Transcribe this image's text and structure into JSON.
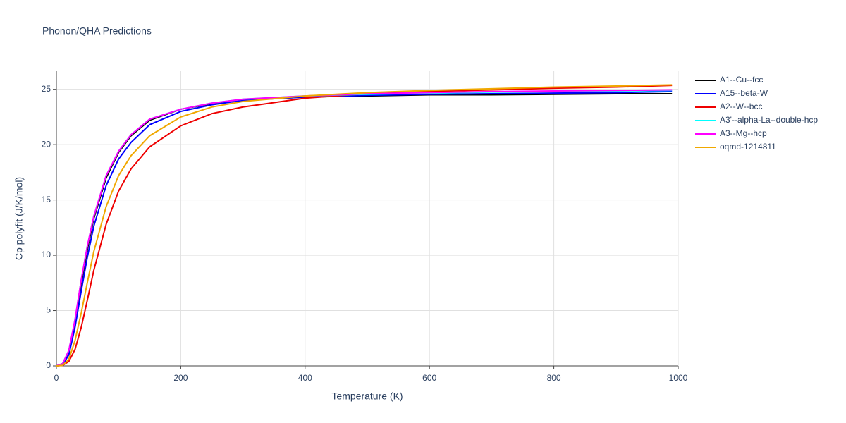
{
  "chart_data": {
    "type": "line",
    "title": "Phonon/QHA Predictions",
    "x_label": "Temperature (K)",
    "y_label": "Cp polyfit (J/K/mol)",
    "x": [
      0,
      10,
      20,
      30,
      40,
      50,
      60,
      80,
      100,
      120,
      150,
      200,
      250,
      300,
      400,
      500,
      600,
      700,
      800,
      900,
      990
    ],
    "series": [
      {
        "name": "A1--Cu--fcc",
        "color": "#000000",
        "values": [
          0,
          0.2,
          1.3,
          4.0,
          7.5,
          10.6,
          13.3,
          17.0,
          19.3,
          20.8,
          22.2,
          23.2,
          23.7,
          24.0,
          24.3,
          24.4,
          24.5,
          24.5,
          24.55,
          24.6,
          24.6
        ]
      },
      {
        "name": "A15--beta-W",
        "color": "#0000ff",
        "values": [
          0,
          0.1,
          1.0,
          3.5,
          6.8,
          9.9,
          12.6,
          16.3,
          18.7,
          20.2,
          21.8,
          23.0,
          23.6,
          24.0,
          24.3,
          24.45,
          24.55,
          24.6,
          24.65,
          24.7,
          24.8
        ]
      },
      {
        "name": "A2--W--bcc",
        "color": "#ee0000",
        "values": [
          0,
          0.05,
          0.4,
          1.5,
          3.5,
          6.0,
          8.6,
          12.8,
          15.8,
          17.8,
          19.8,
          21.7,
          22.8,
          23.4,
          24.2,
          24.6,
          24.8,
          24.95,
          25.1,
          25.2,
          25.35
        ]
      },
      {
        "name": "A3'--alpha-La--double-hcp",
        "color": "#00ffff",
        "values": [
          0,
          0.2,
          1.4,
          4.2,
          7.8,
          10.9,
          13.5,
          17.2,
          19.4,
          20.9,
          22.3,
          23.2,
          23.75,
          24.1,
          24.4,
          24.55,
          24.65,
          24.75,
          24.8,
          24.85,
          24.9
        ]
      },
      {
        "name": "A3--Mg--hcp",
        "color": "#ff00ff",
        "values": [
          0,
          0.2,
          1.4,
          4.2,
          7.8,
          10.9,
          13.5,
          17.2,
          19.4,
          20.9,
          22.3,
          23.2,
          23.75,
          24.1,
          24.4,
          24.6,
          24.7,
          24.8,
          24.85,
          24.9,
          24.95
        ]
      },
      {
        "name": "oqmd-1214811",
        "color": "#f0a800",
        "values": [
          0,
          0.05,
          0.6,
          2.3,
          4.8,
          7.6,
          10.3,
          14.4,
          17.2,
          19.0,
          20.8,
          22.5,
          23.4,
          23.9,
          24.4,
          24.7,
          24.9,
          25.05,
          25.2,
          25.3,
          25.4
        ]
      }
    ],
    "xlim": [
      0,
      1000
    ],
    "ylim": [
      0,
      26.7
    ],
    "xticks": [
      0,
      200,
      400,
      600,
      800,
      1000
    ],
    "yticks": [
      0,
      5,
      10,
      15,
      20,
      25
    ],
    "grid": true,
    "legend": "right"
  }
}
